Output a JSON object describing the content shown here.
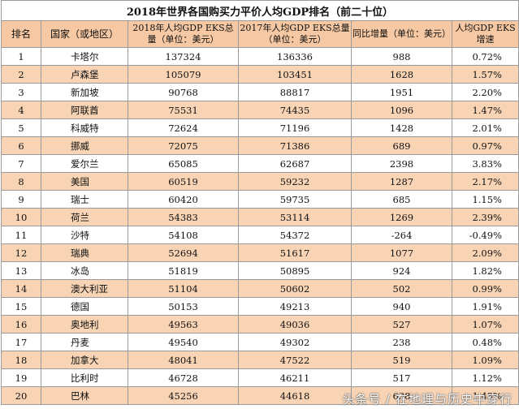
{
  "title": "2018年世界各国购买力平价人均GDP排名（前二十位）",
  "headers": {
    "rank": "排名",
    "country": "国家（或地区）",
    "gdp2018": "2018年人均GDP EKS总量（单位：美元）",
    "gdp2017": "2017年人均GDP EKS总量（单位：美元）",
    "increase": "同比增量（单位：美元）",
    "growth": "人均GDP EKS增速"
  },
  "rows": [
    {
      "rank": "1",
      "country": "卡塔尔",
      "gdp2018": "137324",
      "gdp2017": "136336",
      "increase": "988",
      "growth": "0.72%"
    },
    {
      "rank": "2",
      "country": "卢森堡",
      "gdp2018": "105079",
      "gdp2017": "103451",
      "increase": "1628",
      "growth": "1.57%"
    },
    {
      "rank": "3",
      "country": "新加坡",
      "gdp2018": "90768",
      "gdp2017": "88817",
      "increase": "1951",
      "growth": "2.20%"
    },
    {
      "rank": "4",
      "country": "阿联酋",
      "gdp2018": "75531",
      "gdp2017": "74435",
      "increase": "1096",
      "growth": "1.47%"
    },
    {
      "rank": "5",
      "country": "科威特",
      "gdp2018": "72624",
      "gdp2017": "71196",
      "increase": "1428",
      "growth": "2.01%"
    },
    {
      "rank": "6",
      "country": "挪威",
      "gdp2018": "72075",
      "gdp2017": "71386",
      "increase": "689",
      "growth": "0.97%"
    },
    {
      "rank": "7",
      "country": "爱尔兰",
      "gdp2018": "65085",
      "gdp2017": "62687",
      "increase": "2398",
      "growth": "3.83%"
    },
    {
      "rank": "8",
      "country": "美国",
      "gdp2018": "60519",
      "gdp2017": "59232",
      "increase": "1287",
      "growth": "2.17%"
    },
    {
      "rank": "9",
      "country": "瑞士",
      "gdp2018": "60420",
      "gdp2017": "59735",
      "increase": "685",
      "growth": "1.15%"
    },
    {
      "rank": "10",
      "country": "荷兰",
      "gdp2018": "54383",
      "gdp2017": "53114",
      "increase": "1269",
      "growth": "2.39%"
    },
    {
      "rank": "11",
      "country": "沙特",
      "gdp2018": "54108",
      "gdp2017": "54372",
      "increase": "-264",
      "growth": "-0.49%"
    },
    {
      "rank": "12",
      "country": "瑞典",
      "gdp2018": "52694",
      "gdp2017": "51617",
      "increase": "1077",
      "growth": "2.09%"
    },
    {
      "rank": "13",
      "country": "冰岛",
      "gdp2018": "51819",
      "gdp2017": "50895",
      "increase": "924",
      "growth": "1.82%"
    },
    {
      "rank": "14",
      "country": "澳大利亚",
      "gdp2018": "51104",
      "gdp2017": "50602",
      "increase": "502",
      "growth": "0.99%"
    },
    {
      "rank": "15",
      "country": "德国",
      "gdp2018": "50153",
      "gdp2017": "49213",
      "increase": "940",
      "growth": "1.91%"
    },
    {
      "rank": "16",
      "country": "奥地利",
      "gdp2018": "49563",
      "gdp2017": "49036",
      "increase": "527",
      "growth": "1.07%"
    },
    {
      "rank": "17",
      "country": "丹麦",
      "gdp2018": "49540",
      "gdp2017": "49302",
      "increase": "238",
      "growth": "0.48%"
    },
    {
      "rank": "18",
      "country": "加拿大",
      "gdp2018": "48041",
      "gdp2017": "47522",
      "increase": "519",
      "growth": "1.09%"
    },
    {
      "rank": "19",
      "country": "比利时",
      "gdp2018": "46728",
      "gdp2017": "46211",
      "increase": "517",
      "growth": "1.12%"
    },
    {
      "rank": "20",
      "country": "巴林",
      "gdp2018": "45256",
      "gdp2017": "44618",
      "increase": "638",
      "growth": "1.43%"
    }
  ],
  "watermark": "头条号 / 在地理与历史中穿行",
  "colors": {
    "header_bg": "#f6c9a4",
    "even_row_bg": "#f8d4b5",
    "odd_row_bg": "#ffffff"
  }
}
